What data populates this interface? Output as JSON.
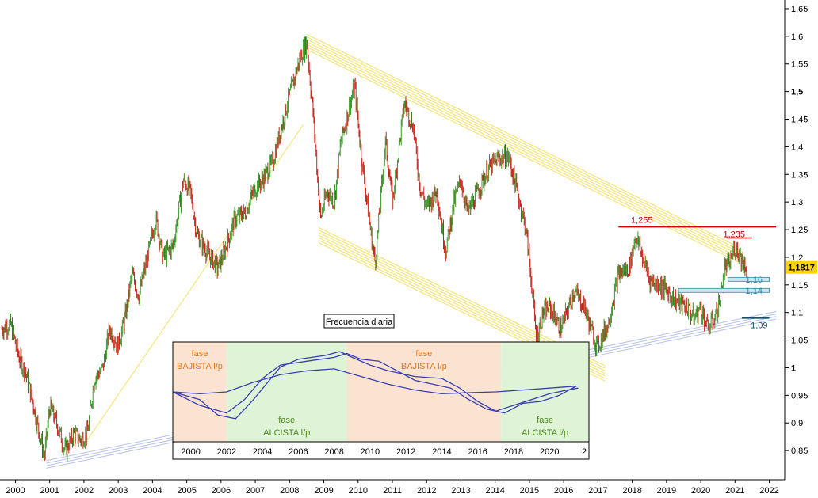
{
  "chart_data": {
    "type": "line",
    "subtype": "candlestick",
    "annotation_box": "Frecuencia diaria",
    "x_ticks": [
      "2000",
      "2001",
      "2002",
      "2003",
      "2004",
      "2005",
      "2006",
      "2007",
      "2008",
      "2009",
      "2010",
      "2011",
      "2012",
      "2013",
      "2014",
      "2015",
      "2016",
      "2017",
      "2018",
      "2019",
      "2020",
      "2021",
      "2022"
    ],
    "y_ticks": [
      "0,85",
      "0,9",
      "0,95",
      "1",
      "1,05",
      "1,1",
      "1,15",
      "1,2",
      "1,25",
      "1,3",
      "1,35",
      "1,4",
      "1,45",
      "1,5",
      "1,55",
      "1,6",
      "1,65"
    ],
    "y_ticks_bold": [
      "1",
      "1,5"
    ],
    "ylim": [
      0.8,
      1.66
    ],
    "xlim": [
      1999.55,
      2022.45
    ],
    "last_price": {
      "label": "1,1817",
      "value": 1.1817,
      "color": "#ffd400"
    },
    "price_path": [
      [
        1999.6,
        1.07
      ],
      [
        1999.85,
        1.08
      ],
      [
        2000.1,
        1.02
      ],
      [
        2000.3,
        0.99
      ],
      [
        2000.5,
        0.94
      ],
      [
        2000.7,
        0.88
      ],
      [
        2000.85,
        0.84
      ],
      [
        2001.0,
        0.93
      ],
      [
        2001.2,
        0.9
      ],
      [
        2001.45,
        0.85
      ],
      [
        2001.7,
        0.88
      ],
      [
        2001.9,
        0.87
      ],
      [
        2002.1,
        0.88
      ],
      [
        2002.3,
        0.98
      ],
      [
        2002.55,
        1.0
      ],
      [
        2002.75,
        1.07
      ],
      [
        2003.0,
        1.04
      ],
      [
        2003.2,
        1.09
      ],
      [
        2003.4,
        1.17
      ],
      [
        2003.6,
        1.13
      ],
      [
        2003.85,
        1.2
      ],
      [
        2004.1,
        1.27
      ],
      [
        2004.3,
        1.2
      ],
      [
        2004.6,
        1.22
      ],
      [
        2004.9,
        1.34
      ],
      [
        2005.1,
        1.32
      ],
      [
        2005.3,
        1.24
      ],
      [
        2005.6,
        1.21
      ],
      [
        2005.9,
        1.18
      ],
      [
        2006.1,
        1.21
      ],
      [
        2006.4,
        1.27
      ],
      [
        2006.7,
        1.28
      ],
      [
        2006.95,
        1.32
      ],
      [
        2007.2,
        1.34
      ],
      [
        2007.5,
        1.37
      ],
      [
        2007.9,
        1.47
      ],
      [
        2008.3,
        1.56
      ],
      [
        2008.5,
        1.59
      ],
      [
        2008.7,
        1.45
      ],
      [
        2008.9,
        1.27
      ],
      [
        2009.1,
        1.32
      ],
      [
        2009.3,
        1.3
      ],
      [
        2009.5,
        1.41
      ],
      [
        2009.9,
        1.51
      ],
      [
        2010.1,
        1.38
      ],
      [
        2010.4,
        1.23
      ],
      [
        2010.5,
        1.19
      ],
      [
        2010.8,
        1.41
      ],
      [
        2011.0,
        1.3
      ],
      [
        2011.35,
        1.48
      ],
      [
        2011.6,
        1.44
      ],
      [
        2011.8,
        1.33
      ],
      [
        2012.0,
        1.29
      ],
      [
        2012.3,
        1.32
      ],
      [
        2012.55,
        1.21
      ],
      [
        2012.8,
        1.3
      ],
      [
        2013.0,
        1.34
      ],
      [
        2013.2,
        1.28
      ],
      [
        2013.5,
        1.32
      ],
      [
        2013.8,
        1.36
      ],
      [
        2014.1,
        1.38
      ],
      [
        2014.4,
        1.38
      ],
      [
        2014.6,
        1.33
      ],
      [
        2014.9,
        1.25
      ],
      [
        2015.1,
        1.13
      ],
      [
        2015.2,
        1.05
      ],
      [
        2015.4,
        1.1
      ],
      [
        2015.6,
        1.11
      ],
      [
        2015.9,
        1.07
      ],
      [
        2016.1,
        1.1
      ],
      [
        2016.3,
        1.14
      ],
      [
        2016.6,
        1.11
      ],
      [
        2016.9,
        1.05
      ],
      [
        2017.0,
        1.04
      ],
      [
        2017.3,
        1.08
      ],
      [
        2017.6,
        1.17
      ],
      [
        2017.9,
        1.18
      ],
      [
        2018.1,
        1.24
      ],
      [
        2018.3,
        1.2
      ],
      [
        2018.5,
        1.16
      ],
      [
        2018.8,
        1.15
      ],
      [
        2019.0,
        1.14
      ],
      [
        2019.3,
        1.12
      ],
      [
        2019.6,
        1.11
      ],
      [
        2019.8,
        1.09
      ],
      [
        2020.0,
        1.11
      ],
      [
        2020.2,
        1.07
      ],
      [
        2020.4,
        1.09
      ],
      [
        2020.55,
        1.12
      ],
      [
        2020.7,
        1.18
      ],
      [
        2020.85,
        1.19
      ],
      [
        2021.0,
        1.22
      ],
      [
        2021.1,
        1.21
      ],
      [
        2021.25,
        1.19
      ],
      [
        2021.35,
        1.18
      ]
    ],
    "annotations": [
      {
        "label": "1,255",
        "value": 1.255,
        "color": "#cc0000",
        "x1": 2017.6,
        "x2": 2022.2
      },
      {
        "label": "1,235",
        "value": 1.235,
        "color": "#cc0000",
        "x1": 2020.75,
        "x2": 2021.5
      },
      {
        "label": "1,16",
        "value": 1.16,
        "color": "#2a8aa8",
        "x1": 2020.8,
        "x2": 2022.0
      },
      {
        "label": "1,14",
        "value": 1.14,
        "color": "#2a8aa8",
        "x1": 2019.35,
        "x2": 2022.0
      },
      {
        "label": "1,09",
        "value": 1.09,
        "color": "#0f4f6a",
        "x1": 2021.2,
        "x2": 2022.0
      }
    ],
    "trend_lines": [
      {
        "name": "upper-channel",
        "color": "#f3e067",
        "from": [
          2008.5,
          1.59
        ],
        "to": [
          2021.1,
          1.205
        ],
        "lines": 7
      },
      {
        "name": "lower-channel",
        "color": "#f3e067",
        "from": [
          2008.85,
          1.24
        ],
        "to": [
          2017.2,
          0.99
        ],
        "lines": 7
      },
      {
        "name": "long-support",
        "color": "#b7c3e6",
        "from": [
          2000.9,
          0.825
        ],
        "to": [
          2022.2,
          1.095
        ],
        "lines": 4
      },
      {
        "name": "thin-yellow",
        "color": "#f3e067",
        "from": [
          2002.05,
          0.865
        ],
        "to": [
          2008.4,
          1.44
        ],
        "lines": 1
      }
    ],
    "inset": {
      "x_ticks": [
        "2000",
        "2002",
        "2004",
        "2006",
        "2008",
        "2010",
        "2012",
        "2014",
        "2016",
        "2018",
        "2020",
        "2"
      ],
      "xlim": [
        1999.0,
        2022.2
      ],
      "ylim": [
        -1.3,
        1.3
      ],
      "phases": [
        {
          "from": 1999.0,
          "to": 2002.0,
          "color": "#fbe3d2",
          "label_1": "fase",
          "label_2": "BAJISTA l/p",
          "label_color": "#e07a1f",
          "label_pos": "top"
        },
        {
          "from": 2002.0,
          "to": 2008.7,
          "color": "#dff3d6",
          "label_1": "fase",
          "label_2": "ALCISTA l/p",
          "label_color": "#4f8a1f",
          "label_pos": "bottom"
        },
        {
          "from": 2008.7,
          "to": 2017.3,
          "color": "#fbe3d2",
          "label_1": "fase",
          "label_2": "BAJISTA l/p",
          "label_color": "#e07a1f",
          "label_pos": "top"
        },
        {
          "from": 2017.3,
          "to": 2022.2,
          "color": "#dff3d6",
          "label_1": "fase",
          "label_2": "ALCISTA l/p",
          "label_color": "#4f8a1f",
          "label_pos": "bottom"
        }
      ],
      "series": [
        {
          "color": "#3a3fb0",
          "points": [
            [
              1999.0,
              0.0
            ],
            [
              2000.5,
              -0.05
            ],
            [
              2002.0,
              0.0
            ],
            [
              2003.5,
              0.25
            ],
            [
              2005.0,
              0.45
            ],
            [
              2006.5,
              0.55
            ],
            [
              2008.0,
              0.6
            ],
            [
              2009.5,
              0.4
            ],
            [
              2011.0,
              0.2
            ],
            [
              2012.5,
              0.05
            ],
            [
              2014.0,
              -0.05
            ],
            [
              2015.5,
              -0.02
            ],
            [
              2017.0,
              0.0
            ],
            [
              2018.5,
              0.05
            ],
            [
              2020.0,
              0.1
            ],
            [
              2021.5,
              0.15
            ]
          ]
        },
        {
          "color": "#3a3fb0",
          "points": [
            [
              1999.0,
              0.0
            ],
            [
              2000.5,
              -0.35
            ],
            [
              2002.0,
              -0.55
            ],
            [
              2003.0,
              -0.2
            ],
            [
              2004.0,
              0.35
            ],
            [
              2005.0,
              0.7
            ],
            [
              2006.5,
              0.8
            ],
            [
              2008.0,
              0.9
            ],
            [
              2008.7,
              1.0
            ],
            [
              2009.5,
              0.85
            ],
            [
              2010.5,
              0.8
            ],
            [
              2011.5,
              0.55
            ],
            [
              2012.5,
              0.3
            ],
            [
              2013.5,
              0.2
            ],
            [
              2014.5,
              0.1
            ],
            [
              2015.5,
              -0.2
            ],
            [
              2016.5,
              -0.45
            ],
            [
              2017.5,
              -0.55
            ],
            [
              2018.5,
              -0.3
            ],
            [
              2019.5,
              -0.25
            ],
            [
              2020.5,
              -0.1
            ],
            [
              2021.5,
              0.15
            ]
          ]
        },
        {
          "color": "#3a3fb0",
          "points": [
            [
              1999.0,
              0.0
            ],
            [
              2000.5,
              -0.2
            ],
            [
              2001.5,
              -0.6
            ],
            [
              2002.5,
              -0.7
            ],
            [
              2003.5,
              -0.2
            ],
            [
              2005.0,
              0.65
            ],
            [
              2006.0,
              0.85
            ],
            [
              2007.5,
              0.95
            ],
            [
              2008.3,
              1.05
            ],
            [
              2009.0,
              0.9
            ],
            [
              2010.0,
              0.7
            ],
            [
              2011.0,
              0.55
            ],
            [
              2012.5,
              0.4
            ],
            [
              2014.0,
              0.35
            ],
            [
              2015.0,
              0.1
            ],
            [
              2016.0,
              -0.25
            ],
            [
              2017.0,
              -0.5
            ],
            [
              2018.0,
              -0.35
            ],
            [
              2019.0,
              -0.2
            ],
            [
              2020.0,
              -0.05
            ],
            [
              2021.0,
              0.05
            ],
            [
              2021.6,
              0.1
            ]
          ]
        }
      ]
    }
  }
}
